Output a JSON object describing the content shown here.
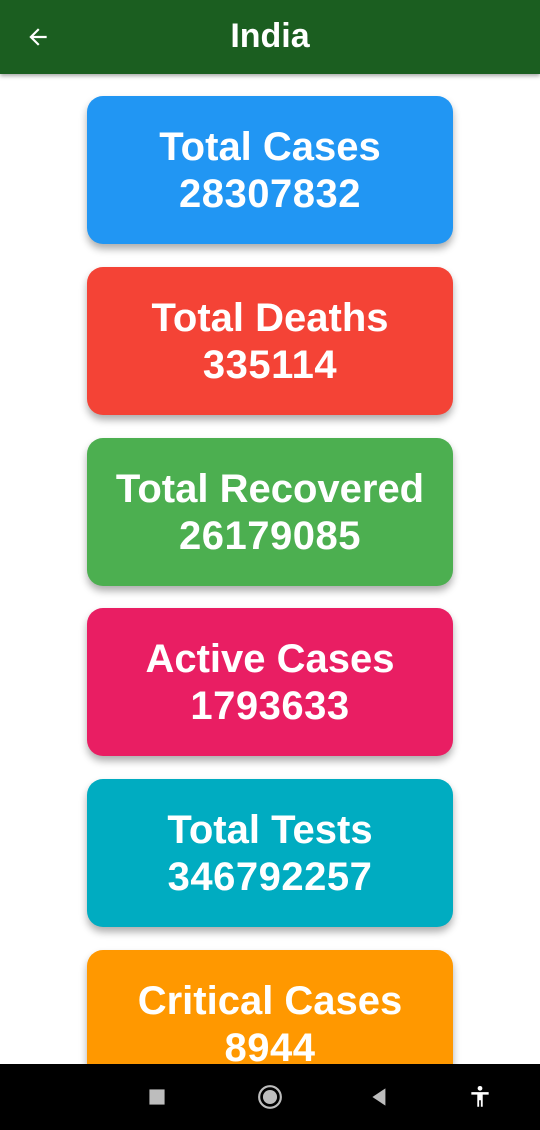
{
  "app_bar": {
    "title": "India",
    "back_icon": "arrow-left-icon",
    "background": "#1b5e20"
  },
  "stats": [
    {
      "label": "Total Cases",
      "value": "28307832",
      "color": "#2196f3"
    },
    {
      "label": "Total Deaths",
      "value": "335114",
      "color": "#f44336"
    },
    {
      "label": "Total Recovered",
      "value": "26179085",
      "color": "#4caf50"
    },
    {
      "label": "Active Cases",
      "value": "1793633",
      "color": "#e91e63"
    },
    {
      "label": "Total Tests",
      "value": "346792257",
      "color": "#00acc1"
    },
    {
      "label": "Critical Cases",
      "value": "8944",
      "color": "#ff9800"
    }
  ],
  "nav_bar": {
    "buttons": [
      "recents-square-icon",
      "home-circle-icon",
      "back-triangle-icon",
      "accessibility-icon"
    ]
  }
}
